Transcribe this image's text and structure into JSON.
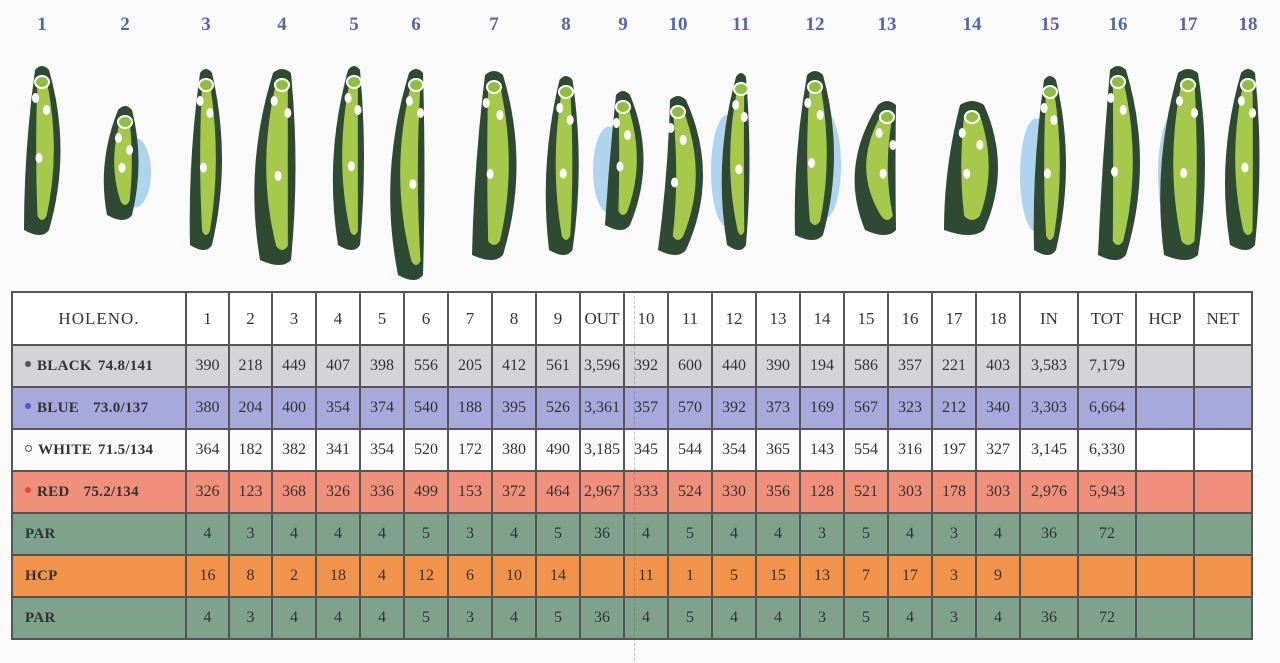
{
  "header_row": {
    "label": "HOLENO.",
    "cells": [
      "1",
      "2",
      "3",
      "4",
      "5",
      "6",
      "7",
      "8",
      "9",
      "OUT",
      "10",
      "11",
      "12",
      "13",
      "14",
      "15",
      "16",
      "17",
      "18",
      "IN",
      "TOT",
      "HCP",
      "NET"
    ]
  },
  "hole_numbers": [
    "1",
    "2",
    "3",
    "4",
    "5",
    "6",
    "7",
    "8",
    "9",
    "10",
    "11",
    "12",
    "13",
    "14",
    "15",
    "16",
    "17",
    "18"
  ],
  "rows": [
    {
      "name": "BLACK",
      "rating": "74.8/141",
      "dot_color": "#555555",
      "dot_style": "filled",
      "bg": "#d4d3d8",
      "cells": [
        "390",
        "218",
        "449",
        "407",
        "398",
        "556",
        "205",
        "412",
        "561",
        "3,596",
        "392",
        "600",
        "440",
        "390",
        "194",
        "586",
        "357",
        "221",
        "403",
        "3,583",
        "7,179",
        "",
        ""
      ]
    },
    {
      "name": "BLUE",
      "rating": "73.0/137",
      "dot_color": "#4a5bd0",
      "dot_style": "filled",
      "bg": "#a7a9dc",
      "cells": [
        "380",
        "204",
        "400",
        "354",
        "374",
        "540",
        "188",
        "395",
        "526",
        "3,361",
        "357",
        "570",
        "392",
        "373",
        "169",
        "567",
        "323",
        "212",
        "340",
        "3,303",
        "6,664",
        "",
        ""
      ]
    },
    {
      "name": "WHITE",
      "rating": "71.5/134",
      "dot_color": "#555555",
      "dot_style": "outline",
      "bg": "#fbfbfb",
      "cells": [
        "364",
        "182",
        "382",
        "341",
        "354",
        "520",
        "172",
        "380",
        "490",
        "3,185",
        "345",
        "544",
        "354",
        "365",
        "143",
        "554",
        "316",
        "197",
        "327",
        "3,145",
        "6,330",
        "",
        ""
      ]
    },
    {
      "name": "RED",
      "rating": "75.2/134",
      "dot_color": "#e04a3a",
      "dot_style": "filled",
      "bg": "#f0907a",
      "cells": [
        "326",
        "123",
        "368",
        "326",
        "336",
        "499",
        "153",
        "372",
        "464",
        "2,967",
        "333",
        "524",
        "330",
        "356",
        "128",
        "521",
        "303",
        "178",
        "303",
        "2,976",
        "5,943",
        "",
        ""
      ]
    },
    {
      "name": "PAR",
      "rating": "",
      "dot_color": "",
      "dot_style": "none",
      "bg": "#7ea28c",
      "cells": [
        "4",
        "3",
        "4",
        "4",
        "4",
        "5",
        "3",
        "4",
        "5",
        "36",
        "4",
        "5",
        "4",
        "4",
        "3",
        "5",
        "4",
        "3",
        "4",
        "36",
        "72",
        "",
        ""
      ]
    },
    {
      "name": "HCP",
      "rating": "",
      "dot_color": "",
      "dot_style": "none",
      "bg": "#f2934c",
      "cells": [
        "16",
        "8",
        "2",
        "18",
        "4",
        "12",
        "6",
        "10",
        "14",
        "",
        "11",
        "1",
        "5",
        "15",
        "13",
        "7",
        "17",
        "3",
        "9",
        "",
        "",
        "",
        ""
      ]
    },
    {
      "name": "PAR",
      "rating": "",
      "dot_color": "",
      "dot_style": "none",
      "bg": "#7ea28c",
      "cells": [
        "4",
        "3",
        "4",
        "4",
        "4",
        "5",
        "3",
        "4",
        "5",
        "36",
        "4",
        "5",
        "4",
        "4",
        "3",
        "5",
        "4",
        "3",
        "4",
        "36",
        "72",
        "",
        ""
      ]
    }
  ],
  "colors": {
    "hole_number": "#5a63a8",
    "fairway": "#a6c94b",
    "rough": "#2f4a32",
    "water": "#8ec3ea",
    "sand": "#ffffff"
  }
}
